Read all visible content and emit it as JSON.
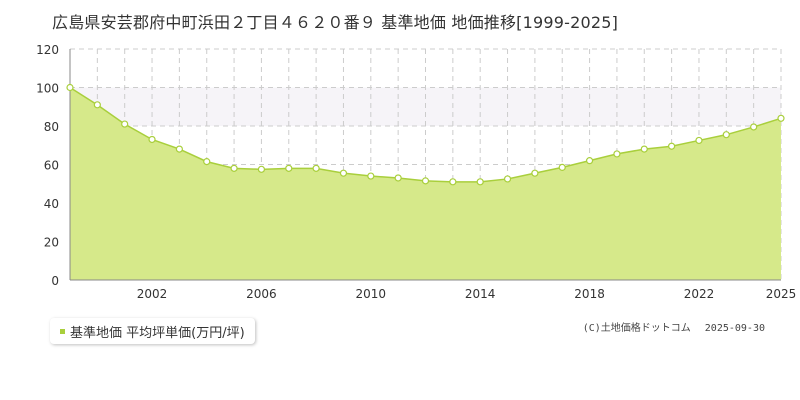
{
  "title": "広島県安芸郡府中町浜田２丁目４６２０番９ 基準地価 地価推移[1999-2025]",
  "colors": {
    "fill": "#d6e98a",
    "line": "#a9cf3c",
    "marker_fill": "#ffffff",
    "grid": "#cccccc",
    "band": "#f6f4f8"
  },
  "legend": {
    "label": "基準地価 平均坪単価(万円/坪)"
  },
  "credit": {
    "source": "(C)土地価格ドットコム",
    "date": "2025-09-30"
  },
  "chart_data": {
    "type": "area",
    "title": "",
    "xlabel": "",
    "ylabel": "",
    "ylim": [
      0,
      120
    ],
    "xlim": [
      1999,
      2025
    ],
    "y_ticks": [
      0,
      20,
      40,
      60,
      80,
      100,
      120
    ],
    "x_ticks": [
      2002,
      2006,
      2010,
      2014,
      2018,
      2022,
      2025
    ],
    "grid": true,
    "series": [
      {
        "name": "基準地価 平均坪単価(万円/坪)",
        "x": [
          1999,
          2000,
          2001,
          2002,
          2003,
          2004,
          2005,
          2006,
          2007,
          2008,
          2009,
          2010,
          2011,
          2012,
          2013,
          2014,
          2015,
          2016,
          2017,
          2018,
          2019,
          2020,
          2021,
          2022,
          2023,
          2024,
          2025
        ],
        "values": [
          100,
          91,
          81,
          73,
          68,
          61.5,
          58,
          57.5,
          58,
          58,
          55.5,
          54,
          53,
          51.5,
          51,
          51,
          52.5,
          55.5,
          58.5,
          62,
          65.5,
          68,
          69.5,
          72.5,
          75.5,
          79.5,
          84
        ]
      }
    ]
  }
}
